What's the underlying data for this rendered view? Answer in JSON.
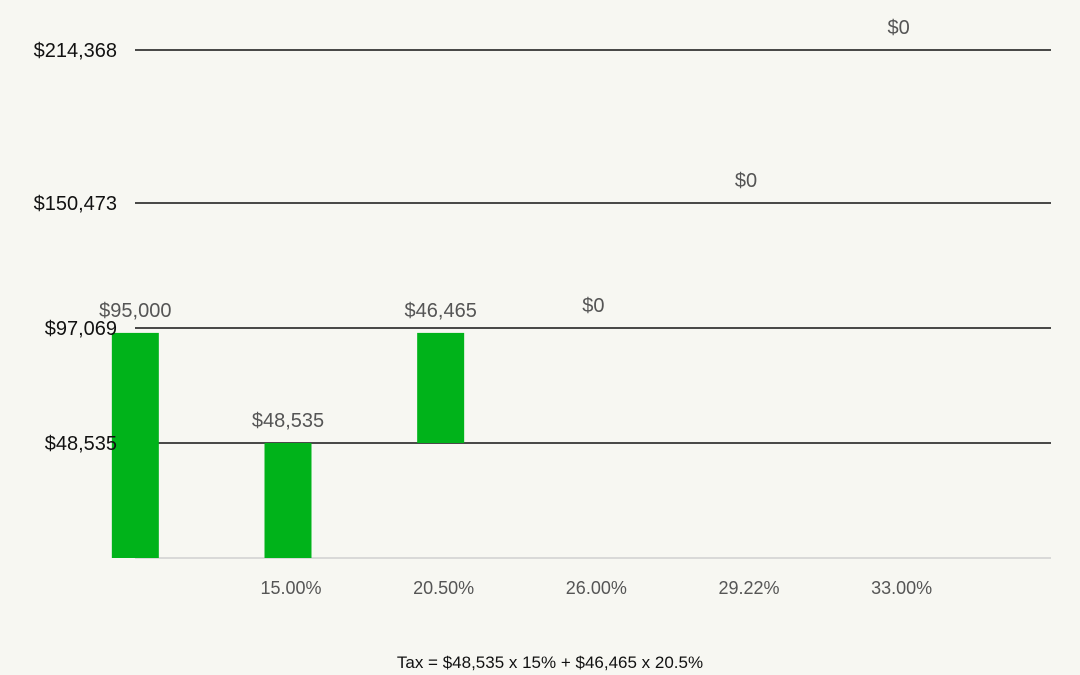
{
  "chart_data": {
    "type": "bar",
    "categories": [
      "",
      "15.00%",
      "20.50%",
      "26.00%",
      "29.22%",
      "33.00%"
    ],
    "y_ticks": [
      {
        "value": 48535,
        "label": "$48,535"
      },
      {
        "value": 97069,
        "label": "$97,069"
      },
      {
        "value": 150473,
        "label": "$150,473"
      },
      {
        "value": 214368,
        "label": "$214,368"
      }
    ],
    "bars": [
      {
        "category": "",
        "base": 0,
        "value": 95000,
        "label": "$95,000"
      },
      {
        "category": "15.00%",
        "base": 0,
        "value": 48535,
        "label": "$48,535"
      },
      {
        "category": "20.50%",
        "base": 48535,
        "value": 46465,
        "label": "$46,465"
      },
      {
        "category": "26.00%",
        "base": 97069,
        "value": 0,
        "label": "$0"
      },
      {
        "category": "29.22%",
        "base": 150473,
        "value": 0,
        "label": "$0"
      },
      {
        "category": "33.00%",
        "base": 214368,
        "value": 0,
        "label": "$0"
      }
    ],
    "bar_color": "#00b31a",
    "gridline_color": "#111111",
    "baseline_color": "#cfcfcf",
    "ylim": [
      0,
      214368
    ],
    "legend": "none",
    "annotation": "Tax = $48,535 x 15% + $46,465 x 20.5%"
  }
}
